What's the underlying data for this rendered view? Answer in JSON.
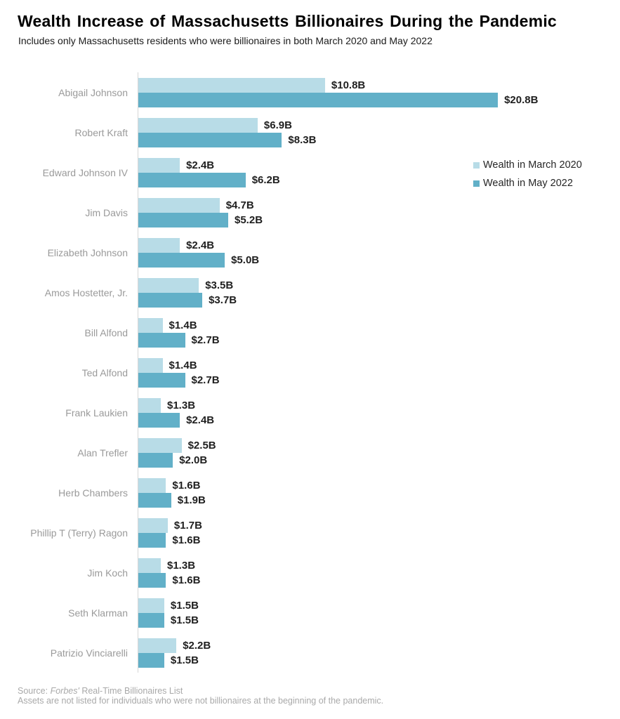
{
  "chart_data": {
    "type": "bar",
    "orientation": "horizontal",
    "title": "Wealth Increase of Massachusetts Billionaires During the Pandemic",
    "subtitle": "Includes only Massachusetts residents who were billionaires in both March 2020 and May 2022",
    "categories": [
      "Abigail Johnson",
      "Robert Kraft",
      "Edward Johnson IV",
      "Jim Davis",
      "Elizabeth Johnson",
      "Amos Hostetter, Jr.",
      "Bill Alfond",
      "Ted Alfond",
      "Frank Laukien",
      "Alan Trefler",
      "Herb Chambers",
      "Phillip T (Terry) Ragon",
      "Jim Koch",
      "Seth Klarman",
      "Patrizio Vinciarelli"
    ],
    "series": [
      {
        "name": "Wealth in March 2020",
        "color": "#b8dce7",
        "values": [
          10.8,
          6.9,
          2.4,
          4.7,
          2.4,
          3.5,
          1.4,
          1.4,
          1.3,
          2.5,
          1.6,
          1.7,
          1.3,
          1.5,
          2.2
        ],
        "labels": [
          "$10.8B",
          "$6.9B",
          "$2.4B",
          "$4.7B",
          "$2.4B",
          "$3.5B",
          "$1.4B",
          "$1.4B",
          "$1.3B",
          "$2.5B",
          "$1.6B",
          "$1.7B",
          "$1.3B",
          "$1.5B",
          "$2.2B"
        ]
      },
      {
        "name": "Wealth in May 2022",
        "color": "#62b0c8",
        "values": [
          20.8,
          8.3,
          6.2,
          5.2,
          5.0,
          3.7,
          2.7,
          2.7,
          2.4,
          2.0,
          1.9,
          1.6,
          1.6,
          1.5,
          1.5
        ],
        "labels": [
          "$20.8B",
          "$8.3B",
          "$6.2B",
          "$5.2B",
          "$5.0B",
          "$3.7B",
          "$2.7B",
          "$2.7B",
          "$2.4B",
          "$2.0B",
          "$1.9B",
          "$1.6B",
          "$1.6B",
          "$1.5B",
          "$1.5B"
        ]
      }
    ],
    "xlim": [
      0,
      26.4
    ],
    "grid": false,
    "legend_position": "upper right",
    "unit": "billions USD"
  },
  "footer": {
    "source_prefix": "Source: ",
    "source_italic": "Forbes'",
    "source_suffix": " Real-Time Billionaires List",
    "note": "Assets are not listed for individuals who were not billionaires at the beginning of the pandemic."
  }
}
